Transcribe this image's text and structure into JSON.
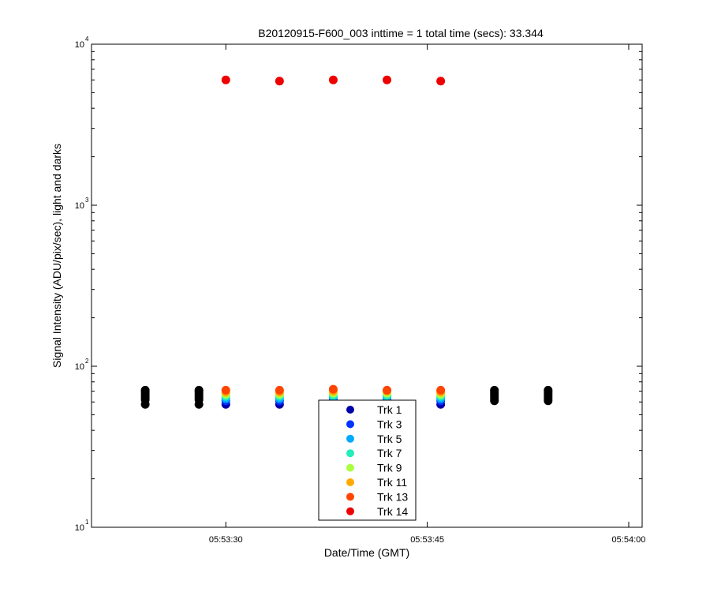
{
  "chart_data": {
    "type": "scatter",
    "title": "B20120915-F600_003 inttime = 1 total time (secs): 33.344",
    "xlabel": "Date/Time (GMT)",
    "ylabel": "Signal Intensity (ADU/pix/sec), light and darks",
    "y_scale": "log",
    "ylim": [
      10,
      10000
    ],
    "xlim": [
      "05:53:20",
      "05:54:01"
    ],
    "x_ticks": [
      "05:53:30",
      "05:53:45",
      "05:54:00"
    ],
    "y_ticks": [
      {
        "base": "10",
        "exp": "1"
      },
      {
        "base": "10",
        "exp": "2"
      },
      {
        "base": "10",
        "exp": "3"
      },
      {
        "base": "10",
        "exp": "4"
      }
    ],
    "grid": false,
    "legend_position": "bottom-center",
    "light_times": [
      "05:53:30",
      "05:53:34",
      "05:53:38",
      "05:53:42",
      "05:53:46"
    ],
    "series": [
      {
        "name": "Trk 1",
        "color": "#0000aa",
        "x": [
          "05:53:30",
          "05:53:34",
          "05:53:38",
          "05:53:42",
          "05:53:46"
        ],
        "y": [
          58,
          58,
          59,
          59,
          58
        ]
      },
      {
        "name": "Trk 3",
        "color": "#0033ff",
        "x": [
          "05:53:30",
          "05:53:34",
          "05:53:38",
          "05:53:42",
          "05:53:46"
        ],
        "y": [
          61,
          61,
          62,
          62,
          61
        ]
      },
      {
        "name": "Trk 5",
        "color": "#00aaff",
        "x": [
          "05:53:30",
          "05:53:34",
          "05:53:38",
          "05:53:42",
          "05:53:46"
        ],
        "y": [
          63,
          63,
          64,
          64,
          63
        ]
      },
      {
        "name": "Trk 7",
        "color": "#22eebb",
        "x": [
          "05:53:30",
          "05:53:34",
          "05:53:38",
          "05:53:42",
          "05:53:46"
        ],
        "y": [
          65,
          65,
          66,
          66,
          65
        ]
      },
      {
        "name": "Trk 9",
        "color": "#aaff44",
        "x": [
          "05:53:30",
          "05:53:34",
          "05:53:38",
          "05:53:42",
          "05:53:46"
        ],
        "y": [
          67,
          67,
          68,
          68,
          67
        ]
      },
      {
        "name": "Trk 11",
        "color": "#ffaa00",
        "x": [
          "05:53:30",
          "05:53:34",
          "05:53:38",
          "05:53:42",
          "05:53:46"
        ],
        "y": [
          69,
          69,
          70,
          70,
          69
        ]
      },
      {
        "name": "Trk 13",
        "color": "#ff4400",
        "x": [
          "05:53:30",
          "05:53:34",
          "05:53:38",
          "05:53:42",
          "05:53:46"
        ],
        "y": [
          71,
          71,
          72,
          71,
          71
        ]
      },
      {
        "name": "Trk 14",
        "color": "#ee0000",
        "x": [
          "05:53:30",
          "05:53:34",
          "05:53:38",
          "05:53:42",
          "05:53:46"
        ],
        "y": [
          6000,
          5900,
          6000,
          6000,
          5900
        ]
      }
    ],
    "darks": {
      "color": "#000000",
      "x": [
        "05:53:24",
        "05:53:24",
        "05:53:24",
        "05:53:24",
        "05:53:24",
        "05:53:24",
        "05:53:24",
        "05:53:28",
        "05:53:28",
        "05:53:28",
        "05:53:28",
        "05:53:28",
        "05:53:28",
        "05:53:28",
        "05:53:50",
        "05:53:50",
        "05:53:50",
        "05:53:50",
        "05:53:50",
        "05:53:50",
        "05:53:54",
        "05:53:54",
        "05:53:54",
        "05:53:54",
        "05:53:54",
        "05:53:54"
      ],
      "y": [
        58,
        62,
        64,
        66,
        68,
        70,
        71,
        58,
        62,
        64,
        66,
        68,
        70,
        71,
        61,
        63,
        65,
        67,
        69,
        71,
        61,
        63,
        65,
        67,
        69,
        71
      ]
    }
  }
}
